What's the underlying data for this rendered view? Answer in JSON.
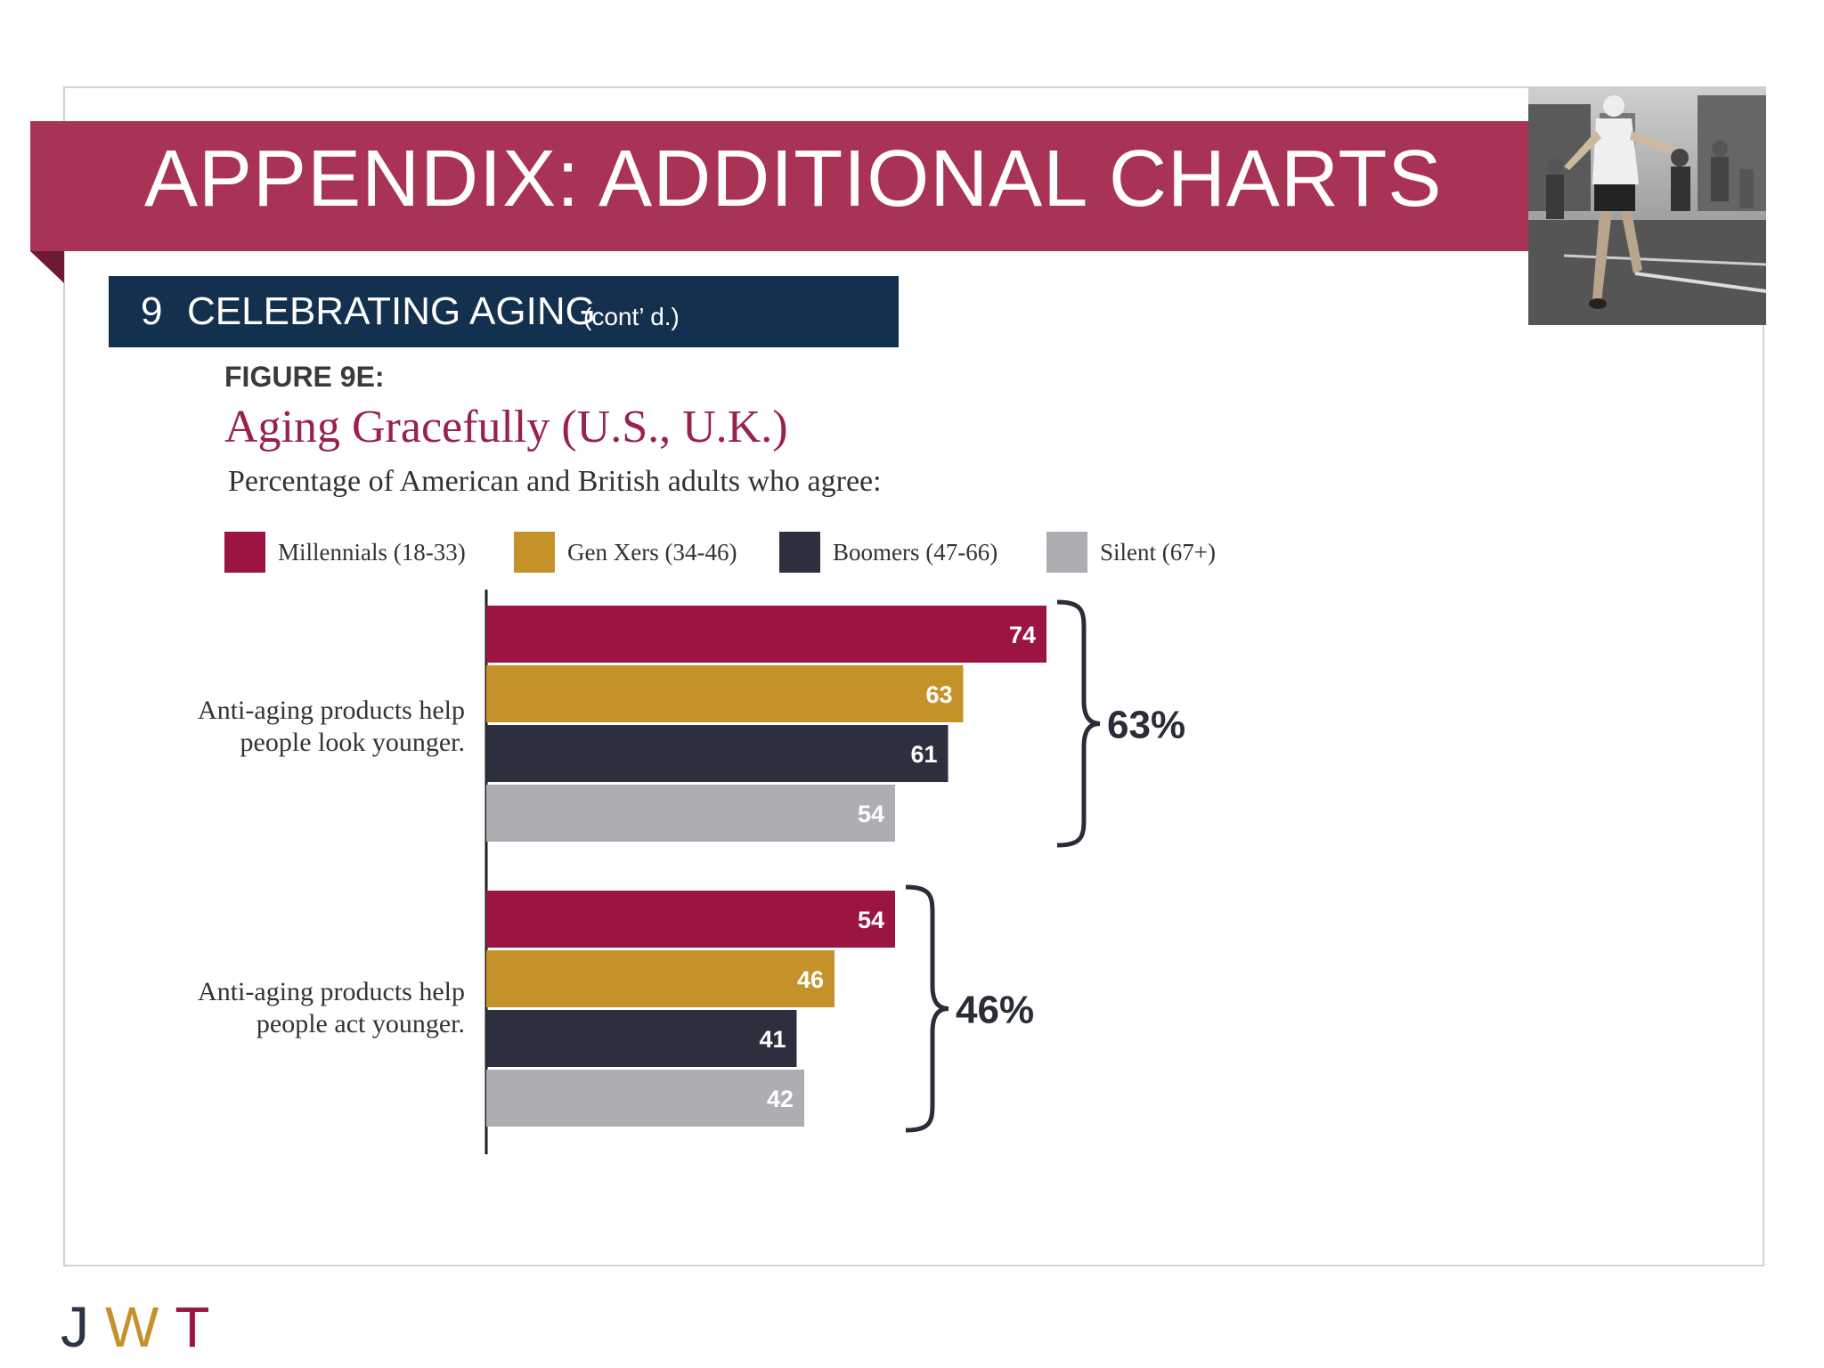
{
  "header": {
    "title": "APPENDIX: ADDITIONAL CHARTS",
    "section_number": "9",
    "section_title": "CELEBRATING AGING",
    "section_sub": "(cont’ d.)"
  },
  "figure": {
    "label": "FIGURE 9E:"
  },
  "logo": {
    "j": "J",
    "w": "W",
    "t": "T"
  },
  "colors": {
    "banner": "#a93355",
    "section_bar": "#14304f",
    "millennials": "#9b1540",
    "genx": "#c5922a",
    "boomers": "#2c2f3d",
    "silent": "#adaeb2"
  },
  "chart_data": {
    "type": "bar",
    "orientation": "horizontal",
    "title": "Aging Gracefully (U.S., U.K.)",
    "subtitle": "Percentage of American and British adults who agree:",
    "categories": [
      "Anti-aging products help people look younger.",
      "Anti-aging products help people act younger."
    ],
    "series": [
      {
        "name": "Millennials (18-33)",
        "values": [
          74,
          54
        ]
      },
      {
        "name": "Gen Xers (34-46)",
        "values": [
          63,
          46
        ]
      },
      {
        "name": "Boomers (47-66)",
        "values": [
          61,
          41
        ]
      },
      {
        "name": "Silent (67+)",
        "values": [
          54,
          42
        ]
      }
    ],
    "group_totals": [
      "63%",
      "46%"
    ],
    "xlim": [
      0,
      100
    ],
    "grid": false,
    "legend": "top"
  }
}
